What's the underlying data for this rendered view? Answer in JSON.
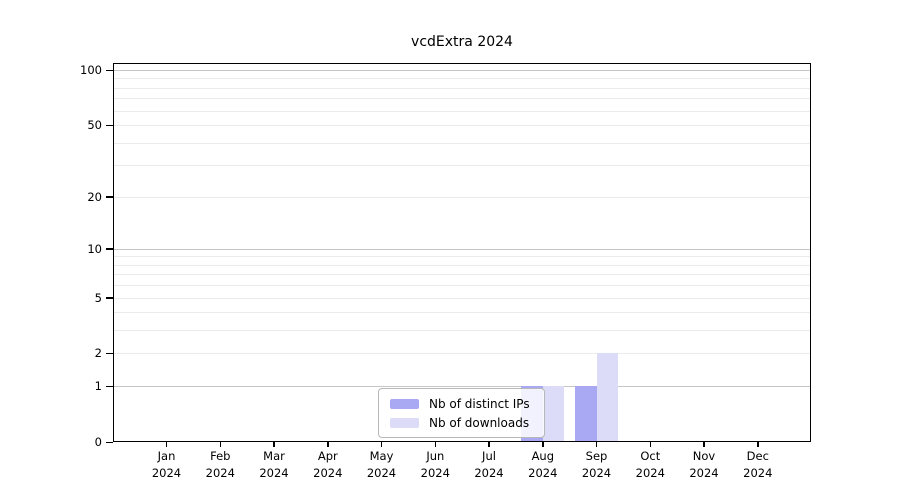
{
  "chart_data": {
    "type": "bar",
    "title": "vcdExtra 2024",
    "categories": [
      "Jan",
      "Feb",
      "Mar",
      "Apr",
      "May",
      "Jun",
      "Jul",
      "Aug",
      "Sep",
      "Oct",
      "Nov",
      "Dec"
    ],
    "category_year": "2024",
    "series": [
      {
        "name": "Nb of distinct IPs",
        "color": "#a9a9f3",
        "values": [
          0,
          0,
          0,
          0,
          0,
          0,
          0,
          1,
          1,
          0,
          0,
          0
        ]
      },
      {
        "name": "Nb of downloads",
        "color": "#dcdcf8",
        "values": [
          0,
          0,
          0,
          0,
          0,
          0,
          0,
          1,
          2,
          0,
          0,
          0
        ]
      }
    ],
    "xlabel": "",
    "ylabel": "",
    "y_axis": {
      "scale": "log1p",
      "ylim": [
        0,
        100
      ],
      "tick_values": [
        0,
        1,
        2,
        5,
        10,
        20,
        50,
        100
      ],
      "tick_labels": [
        "0",
        "1",
        "2",
        "5",
        "10",
        "20",
        "50",
        "100"
      ],
      "major_gridlines": [
        1,
        10,
        100
      ],
      "minor_gridlines": [
        2,
        3,
        4,
        5,
        6,
        7,
        8,
        9,
        20,
        30,
        40,
        50,
        60,
        70,
        80,
        90
      ]
    },
    "grid": true,
    "legend": {
      "position": "bottom-center",
      "entries": [
        "Nb of distinct IPs",
        "Nb of downloads"
      ]
    }
  },
  "colors": {
    "bar_distinct_ips": "#a9a9f3",
    "bar_downloads": "#dcdcf8",
    "grid_major": "#c6c6c6",
    "grid_minor": "#ebebeb",
    "frame": "#000000",
    "background": "#ffffff"
  }
}
